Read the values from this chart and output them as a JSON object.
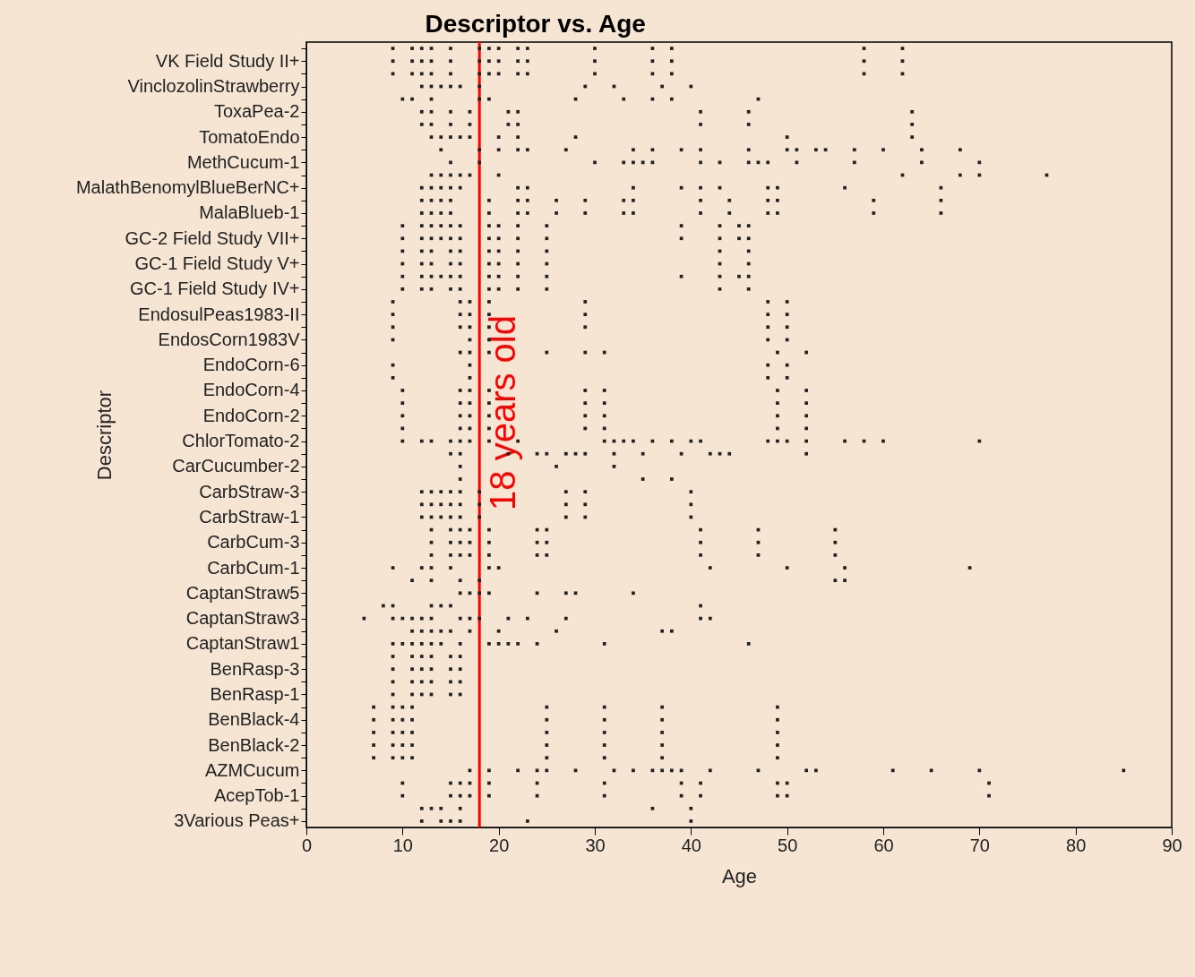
{
  "chart_data": {
    "type": "scatter",
    "orientation": "horizontal",
    "title": "Descriptor vs. Age",
    "xlabel": "Age",
    "ylabel": "Descriptor",
    "categories": [
      null,
      "VK Field Study II+",
      null,
      "VinclozolinStrawberry",
      null,
      "ToxaPea-2",
      null,
      "TomatoEndo",
      null,
      "MethCucum-1",
      null,
      "MalathBenomylBlueBerNC+",
      null,
      "MalaBlueb-1",
      null,
      "GC-2 Field Study VII+",
      null,
      "GC-1 Field Study V+",
      null,
      "GC-1 Field Study IV+",
      null,
      "EndosulPeas1983-II",
      null,
      "EndosCorn1983V",
      null,
      "EndoCorn-6",
      null,
      "EndoCorn-4",
      null,
      "EndoCorn-2",
      null,
      "ChlorTomato-2",
      null,
      "CarCucumber-2",
      null,
      "CarbStraw-3",
      null,
      "CarbStraw-1",
      null,
      "CarbCum-3",
      null,
      "CarbCum-1",
      null,
      "CaptanStraw5",
      null,
      "CaptanStraw3",
      null,
      "CaptanStraw1",
      null,
      "BenRasp-3",
      null,
      "BenRasp-1",
      null,
      "BenBlack-4",
      null,
      "BenBlack-2",
      null,
      "AZMCucum",
      null,
      "AcepTob-1",
      null,
      "3Various Peas+"
    ],
    "series": [
      {
        "color": "#222222",
        "values": [
          9,
          9,
          9,
          12,
          10,
          12,
          12,
          13,
          14,
          15,
          13,
          12,
          12,
          12,
          10,
          10,
          10,
          10,
          10,
          10,
          9,
          9,
          9,
          9,
          16,
          9,
          9,
          10,
          10,
          10,
          10,
          10,
          15,
          16,
          16,
          12,
          12,
          12,
          13,
          13,
          13,
          9,
          11,
          16,
          8,
          6,
          11,
          9,
          9,
          9,
          9,
          9,
          7,
          7,
          7,
          7,
          7,
          17,
          10,
          10,
          12,
          12
        ]
      },
      {
        "color": "#222222",
        "values": [
          11,
          11,
          11,
          13,
          11,
          13,
          13,
          14,
          18,
          18,
          14,
          13,
          13,
          13,
          12,
          12,
          12,
          12,
          12,
          12,
          16,
          16,
          16,
          17,
          17,
          17,
          17,
          16,
          16,
          16,
          16,
          12,
          16,
          26,
          35,
          13,
          13,
          13,
          15,
          15,
          15,
          12,
          13,
          17,
          9,
          9,
          12,
          10,
          11,
          11,
          11,
          11,
          9,
          9,
          9,
          9,
          9,
          19,
          15,
          15,
          13,
          14
        ]
      },
      {
        "color": "#222222",
        "values": [
          12,
          12,
          12,
          14,
          13,
          15,
          15,
          15,
          20,
          30,
          15,
          14,
          14,
          14,
          13,
          13,
          13,
          13,
          13,
          13,
          17,
          17,
          17,
          19,
          19,
          48,
          48,
          17,
          17,
          17,
          17,
          13,
          21,
          32,
          38,
          14,
          14,
          14,
          16,
          16,
          16,
          13,
          16,
          18,
          13,
          10,
          13,
          11,
          12,
          12,
          12,
          12,
          10,
          10,
          10,
          10,
          10,
          22,
          16,
          16,
          14,
          15
        ]
      },
      {
        "color": "#222222",
        "values": [
          13,
          13,
          13,
          15,
          18,
          17,
          17,
          16,
          22,
          33,
          16,
          15,
          15,
          15,
          14,
          14,
          15,
          15,
          14,
          15,
          19,
          19,
          19,
          48,
          25,
          50,
          50,
          19,
          19,
          19,
          19,
          15,
          24,
          null,
          null,
          15,
          15,
          15,
          17,
          17,
          17,
          15,
          18,
          19,
          14,
          11,
          14,
          12,
          13,
          13,
          13,
          13,
          11,
          11,
          11,
          11,
          11,
          24,
          17,
          17,
          16,
          16
        ]
      },
      {
        "color": "#222222",
        "values": [
          15,
          15,
          15,
          16,
          19,
          21,
          21,
          17,
          23,
          34,
          17,
          16,
          19,
          19,
          15,
          15,
          16,
          16,
          15,
          16,
          29,
          29,
          29,
          50,
          29,
          null,
          null,
          29,
          29,
          29,
          29,
          16,
          25,
          null,
          null,
          16,
          16,
          16,
          19,
          19,
          19,
          19,
          55,
          24,
          15,
          12,
          15,
          13,
          15,
          15,
          15,
          15,
          25,
          25,
          25,
          25,
          25,
          25,
          19,
          19,
          36,
          23
        ]
      },
      {
        "color": "#222222",
        "values": [
          18,
          18,
          18,
          18,
          28,
          22,
          22,
          20,
          27,
          35,
          20,
          22,
          22,
          22,
          16,
          16,
          19,
          19,
          16,
          19,
          48,
          48,
          48,
          null,
          31,
          null,
          null,
          31,
          31,
          31,
          31,
          17,
          27,
          null,
          null,
          18,
          18,
          18,
          24,
          24,
          24,
          20,
          56,
          27,
          41,
          13,
          17,
          14,
          16,
          16,
          16,
          16,
          31,
          31,
          31,
          31,
          31,
          28,
          24,
          24,
          40,
          40
        ]
      },
      {
        "color": "#222222",
        "values": [
          19,
          19,
          19,
          29,
          33,
          41,
          41,
          22,
          34,
          36,
          62,
          23,
          23,
          23,
          19,
          19,
          20,
          20,
          19,
          20,
          50,
          50,
          50,
          null,
          49,
          null,
          null,
          49,
          49,
          49,
          49,
          19,
          28,
          null,
          null,
          27,
          27,
          27,
          25,
          25,
          25,
          42,
          null,
          28,
          null,
          16,
          20,
          16,
          null,
          null,
          null,
          null,
          37,
          37,
          37,
          37,
          37,
          32,
          31,
          31,
          null,
          null
        ]
      },
      {
        "color": "#222222",
        "values": [
          20,
          20,
          20,
          32,
          36,
          46,
          46,
          28,
          36,
          41,
          68,
          34,
          26,
          26,
          20,
          20,
          22,
          22,
          20,
          22,
          null,
          null,
          null,
          null,
          52,
          null,
          null,
          52,
          52,
          52,
          52,
          22,
          29,
          null,
          null,
          29,
          29,
          29,
          41,
          41,
          41,
          50,
          null,
          34,
          null,
          17,
          26,
          19,
          null,
          null,
          null,
          null,
          49,
          49,
          49,
          49,
          49,
          34,
          39,
          39,
          null,
          null
        ]
      },
      {
        "color": "#222222",
        "values": [
          22,
          22,
          22,
          37,
          38,
          63,
          63,
          50,
          39,
          43,
          70,
          39,
          29,
          29,
          22,
          22,
          25,
          25,
          22,
          25,
          null,
          null,
          null,
          null,
          null,
          null,
          null,
          null,
          null,
          null,
          null,
          31,
          32,
          null,
          null,
          40,
          40,
          40,
          47,
          47,
          47,
          56,
          null,
          null,
          null,
          18,
          37,
          20,
          null,
          null,
          null,
          null,
          null,
          null,
          null,
          null,
          null,
          36,
          41,
          41,
          null,
          null
        ]
      },
      {
        "color": "#222222",
        "values": [
          23,
          23,
          23,
          40,
          47,
          null,
          null,
          63,
          41,
          46,
          77,
          41,
          33,
          33,
          25,
          25,
          43,
          43,
          25,
          43,
          null,
          null,
          null,
          null,
          null,
          null,
          null,
          null,
          null,
          null,
          null,
          32,
          35,
          null,
          null,
          null,
          null,
          null,
          55,
          55,
          55,
          69,
          null,
          null,
          null,
          21,
          38,
          21,
          null,
          null,
          null,
          null,
          null,
          null,
          null,
          null,
          null,
          37,
          49,
          49,
          null,
          null
        ]
      },
      {
        "color": "#222222",
        "values": [
          30,
          30,
          30,
          null,
          null,
          null,
          null,
          null,
          46,
          47,
          null,
          43,
          34,
          34,
          39,
          39,
          46,
          46,
          39,
          46,
          null,
          null,
          null,
          null,
          null,
          null,
          null,
          null,
          null,
          null,
          null,
          33,
          39,
          null,
          null,
          null,
          null,
          null,
          null,
          null,
          null,
          null,
          null,
          null,
          null,
          23,
          null,
          22,
          null,
          null,
          null,
          null,
          null,
          null,
          null,
          null,
          null,
          38,
          50,
          50,
          null,
          null
        ]
      },
      {
        "color": "#222222",
        "values": [
          36,
          36,
          36,
          null,
          null,
          null,
          null,
          null,
          50,
          48,
          null,
          48,
          41,
          41,
          43,
          43,
          null,
          null,
          43,
          null,
          null,
          null,
          null,
          null,
          null,
          null,
          null,
          null,
          null,
          null,
          null,
          34,
          42,
          null,
          null,
          null,
          null,
          null,
          null,
          null,
          null,
          null,
          null,
          null,
          null,
          27,
          null,
          24,
          null,
          null,
          null,
          null,
          null,
          null,
          null,
          null,
          null,
          39,
          71,
          71,
          null,
          null
        ]
      },
      {
        "color": "#222222",
        "values": [
          38,
          38,
          38,
          null,
          null,
          null,
          null,
          null,
          51,
          51,
          null,
          49,
          44,
          44,
          45,
          45,
          null,
          null,
          45,
          null,
          null,
          null,
          null,
          null,
          null,
          null,
          null,
          null,
          null,
          null,
          null,
          36,
          43,
          null,
          null,
          null,
          null,
          null,
          null,
          null,
          null,
          null,
          null,
          null,
          null,
          41,
          null,
          31,
          null,
          null,
          null,
          null,
          null,
          null,
          null,
          null,
          null,
          42,
          null,
          null,
          null,
          null
        ]
      },
      {
        "color": "#222222",
        "values": [
          58,
          58,
          58,
          null,
          null,
          null,
          null,
          null,
          53,
          57,
          null,
          56,
          48,
          48,
          46,
          46,
          null,
          null,
          46,
          null,
          null,
          null,
          null,
          null,
          null,
          null,
          null,
          null,
          null,
          null,
          null,
          38,
          44,
          null,
          null,
          null,
          null,
          null,
          null,
          null,
          null,
          null,
          null,
          null,
          null,
          42,
          null,
          46,
          null,
          null,
          null,
          null,
          null,
          null,
          null,
          null,
          null,
          47,
          null,
          null,
          null,
          null
        ]
      },
      {
        "color": "#222222",
        "values": [
          62,
          62,
          62,
          null,
          null,
          null,
          null,
          null,
          54,
          64,
          null,
          66,
          49,
          49,
          null,
          null,
          null,
          null,
          null,
          null,
          null,
          null,
          null,
          null,
          null,
          null,
          null,
          null,
          null,
          null,
          null,
          40,
          52,
          null,
          null,
          null,
          null,
          null,
          null,
          null,
          null,
          null,
          null,
          null,
          null,
          null,
          null,
          null,
          null,
          null,
          null,
          null,
          null,
          null,
          null,
          null,
          null,
          52,
          null,
          null,
          null,
          null
        ]
      },
      {
        "color": "#222222",
        "values": [
          null,
          null,
          null,
          null,
          null,
          null,
          null,
          null,
          57,
          70,
          null,
          null,
          59,
          59,
          null,
          null,
          null,
          null,
          null,
          null,
          null,
          null,
          null,
          null,
          null,
          null,
          null,
          null,
          null,
          null,
          null,
          41,
          null,
          null,
          null,
          null,
          null,
          null,
          null,
          null,
          null,
          null,
          null,
          null,
          null,
          null,
          null,
          null,
          null,
          null,
          null,
          null,
          null,
          null,
          null,
          null,
          null,
          53,
          null,
          null,
          null,
          null
        ]
      },
      {
        "color": "#222222",
        "values": [
          null,
          null,
          null,
          null,
          null,
          null,
          null,
          null,
          60,
          null,
          null,
          null,
          66,
          66,
          null,
          null,
          null,
          null,
          null,
          null,
          null,
          null,
          null,
          null,
          null,
          null,
          null,
          null,
          null,
          null,
          null,
          48,
          null,
          null,
          null,
          null,
          null,
          null,
          null,
          null,
          null,
          null,
          null,
          null,
          null,
          null,
          null,
          null,
          null,
          null,
          null,
          null,
          null,
          null,
          null,
          null,
          null,
          61,
          null,
          null,
          null,
          null
        ]
      },
      {
        "color": "#222222",
        "values": [
          null,
          null,
          null,
          null,
          null,
          null,
          null,
          null,
          64,
          null,
          null,
          null,
          null,
          null,
          null,
          null,
          null,
          null,
          null,
          null,
          null,
          null,
          null,
          null,
          null,
          null,
          null,
          null,
          null,
          null,
          null,
          49,
          null,
          null,
          null,
          null,
          null,
          null,
          null,
          null,
          null,
          null,
          null,
          null,
          null,
          null,
          null,
          null,
          null,
          null,
          null,
          null,
          null,
          null,
          null,
          null,
          null,
          65,
          null,
          null,
          null,
          null
        ]
      },
      {
        "color": "#222222",
        "values": [
          null,
          null,
          null,
          null,
          null,
          null,
          null,
          null,
          68,
          null,
          null,
          null,
          null,
          null,
          null,
          null,
          null,
          null,
          null,
          null,
          null,
          null,
          null,
          null,
          null,
          null,
          null,
          null,
          null,
          null,
          null,
          50,
          null,
          null,
          null,
          null,
          null,
          null,
          null,
          null,
          null,
          null,
          null,
          null,
          null,
          null,
          null,
          null,
          null,
          null,
          null,
          null,
          null,
          null,
          null,
          null,
          null,
          70,
          null,
          null,
          null,
          null
        ]
      },
      {
        "color": "#222222",
        "values": [
          null,
          null,
          null,
          null,
          null,
          null,
          null,
          null,
          null,
          null,
          null,
          null,
          null,
          null,
          null,
          null,
          null,
          null,
          null,
          null,
          null,
          null,
          null,
          null,
          null,
          null,
          null,
          null,
          null,
          null,
          null,
          52,
          null,
          null,
          null,
          null,
          null,
          null,
          null,
          null,
          null,
          null,
          null,
          null,
          null,
          null,
          null,
          null,
          null,
          null,
          null,
          null,
          null,
          null,
          null,
          null,
          null,
          85,
          null,
          null,
          null,
          null
        ]
      },
      {
        "color": "#222222",
        "values": [
          null,
          null,
          null,
          null,
          null,
          null,
          null,
          null,
          null,
          null,
          null,
          null,
          null,
          null,
          null,
          null,
          null,
          null,
          null,
          null,
          null,
          null,
          null,
          null,
          null,
          null,
          null,
          null,
          null,
          null,
          null,
          56,
          null,
          null,
          null,
          null,
          null,
          null,
          null,
          null,
          null,
          null,
          null,
          null,
          null,
          null,
          null,
          null,
          null,
          null,
          null,
          null,
          null,
          null,
          null,
          null,
          null,
          null,
          null,
          null,
          null,
          null
        ]
      },
      {
        "color": "#222222",
        "values": [
          null,
          null,
          null,
          null,
          null,
          null,
          null,
          null,
          null,
          null,
          null,
          null,
          null,
          null,
          null,
          null,
          null,
          null,
          null,
          null,
          null,
          null,
          null,
          null,
          null,
          null,
          null,
          null,
          null,
          null,
          null,
          58,
          null,
          null,
          null,
          null,
          null,
          null,
          null,
          null,
          null,
          null,
          null,
          null,
          null,
          null,
          null,
          null,
          null,
          null,
          null,
          null,
          null,
          null,
          null,
          null,
          null,
          null,
          null,
          null,
          null,
          null
        ]
      },
      {
        "color": "#222222",
        "values": [
          null,
          null,
          null,
          null,
          null,
          null,
          null,
          null,
          null,
          null,
          null,
          null,
          null,
          null,
          null,
          null,
          null,
          null,
          null,
          null,
          null,
          null,
          null,
          null,
          null,
          null,
          null,
          null,
          null,
          null,
          null,
          60,
          null,
          null,
          null,
          null,
          null,
          null,
          null,
          null,
          null,
          null,
          null,
          null,
          null,
          null,
          null,
          null,
          null,
          null,
          null,
          null,
          null,
          null,
          null,
          null,
          null,
          null,
          null,
          null,
          null,
          null
        ]
      },
      {
        "color": "#222222",
        "values": [
          null,
          null,
          null,
          null,
          null,
          null,
          null,
          null,
          null,
          null,
          null,
          null,
          null,
          null,
          null,
          null,
          null,
          null,
          null,
          null,
          null,
          null,
          null,
          null,
          null,
          null,
          null,
          null,
          null,
          null,
          null,
          70,
          null,
          null,
          null,
          null,
          null,
          null,
          null,
          null,
          null,
          null,
          null,
          null,
          null,
          null,
          null,
          null,
          null,
          null,
          null,
          null,
          null,
          null,
          null,
          null,
          null,
          null,
          null,
          null,
          null,
          null
        ]
      }
    ],
    "xlim": [
      0,
      90
    ],
    "xticks": [
      0,
      10,
      20,
      30,
      40,
      50,
      60,
      70,
      80,
      90
    ],
    "marker": "square",
    "ref_lines": [
      {
        "axis": "x",
        "value": 18,
        "label": "18 years old",
        "color": "#ff0000"
      }
    ]
  }
}
